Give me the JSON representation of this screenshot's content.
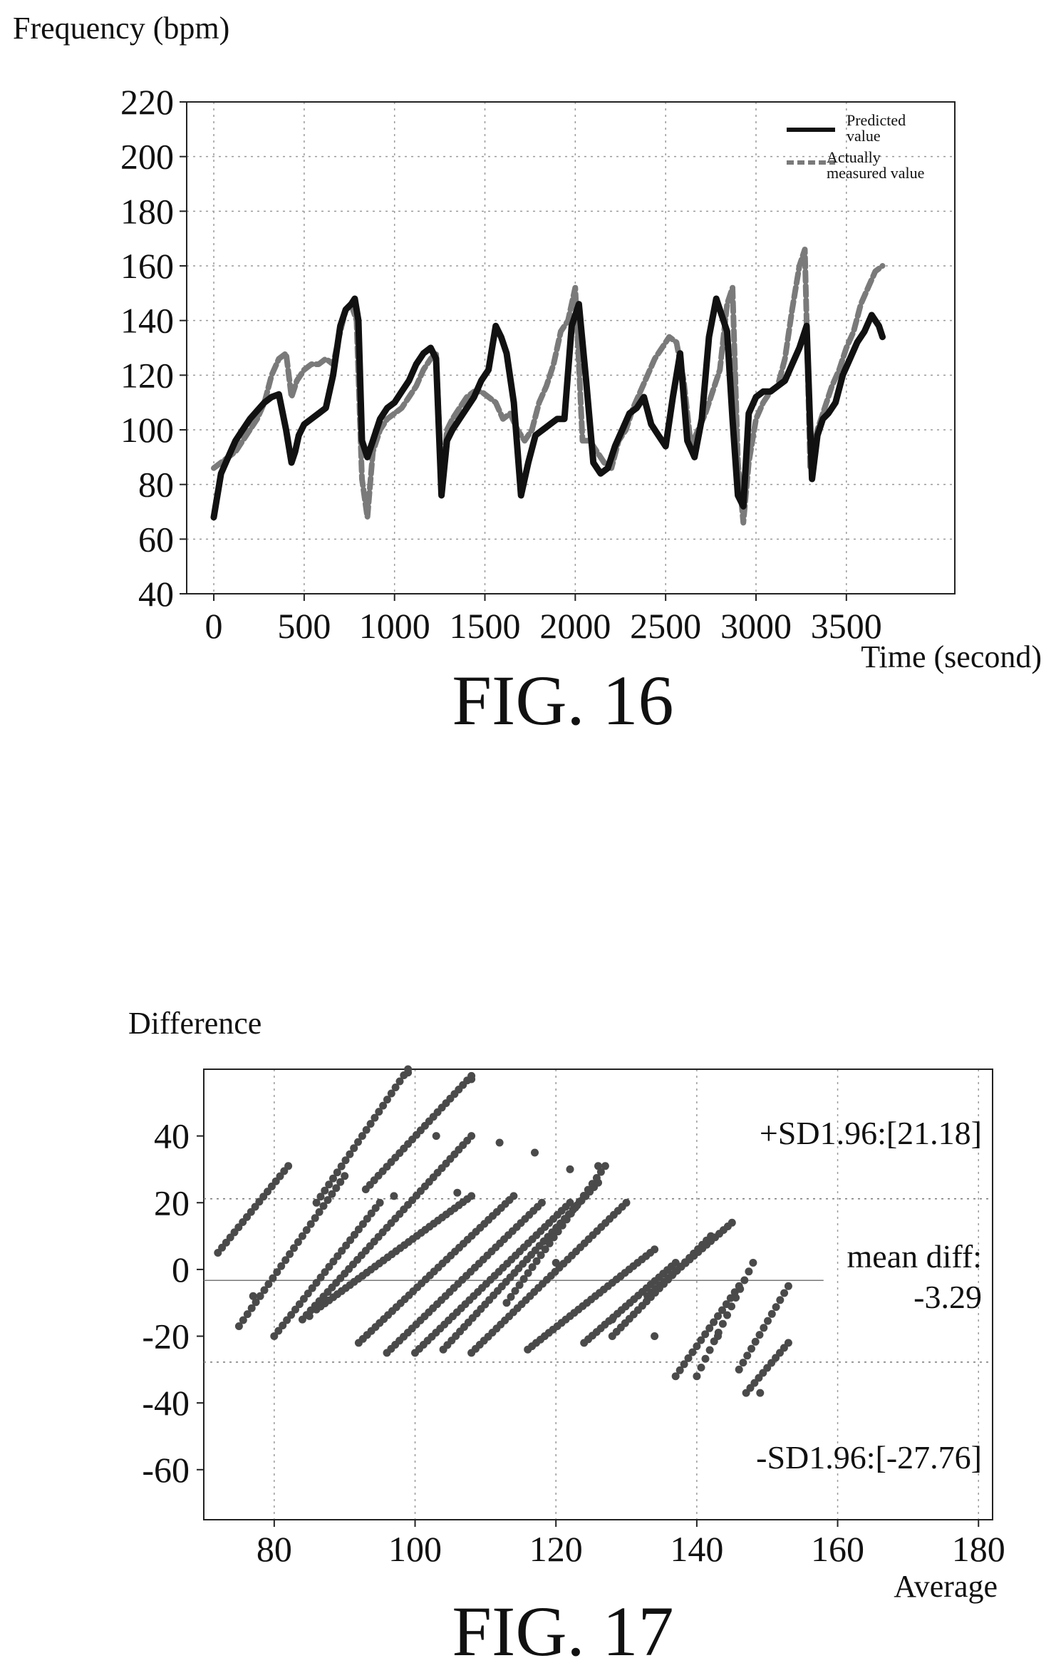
{
  "chart_data": [
    {
      "type": "line",
      "caption": "FIG. 16",
      "ylabel": "Frequency (bpm)",
      "xlabel": "Time (second)",
      "xlim": [
        -150,
        4100
      ],
      "ylim": [
        40,
        220
      ],
      "xticks": [
        0,
        500,
        1000,
        1500,
        2000,
        2500,
        3000,
        3500
      ],
      "yticks": [
        40,
        60,
        80,
        100,
        120,
        140,
        160,
        180,
        200,
        220
      ],
      "grid": true,
      "legend_position": "top-right",
      "series": [
        {
          "name": "Predicted value",
          "style": "solid",
          "color": "#111111",
          "x": [
            0,
            40,
            80,
            120,
            160,
            200,
            240,
            280,
            320,
            360,
            400,
            430,
            450,
            470,
            500,
            540,
            580,
            620,
            660,
            700,
            730,
            760,
            780,
            800,
            820,
            850,
            880,
            920,
            960,
            1000,
            1040,
            1080,
            1120,
            1160,
            1200,
            1230,
            1260,
            1290,
            1320,
            1360,
            1400,
            1440,
            1480,
            1520,
            1560,
            1590,
            1620,
            1660,
            1700,
            1740,
            1780,
            1820,
            1860,
            1900,
            1940,
            1980,
            2020,
            2060,
            2100,
            2140,
            2180,
            2220,
            2260,
            2300,
            2340,
            2380,
            2420,
            2460,
            2500,
            2540,
            2580,
            2620,
            2660,
            2700,
            2740,
            2780,
            2810,
            2840,
            2870,
            2900,
            2930,
            2960,
            3000,
            3040,
            3080,
            3120,
            3160,
            3200,
            3240,
            3280,
            3310,
            3340,
            3370,
            3400,
            3440,
            3480,
            3520,
            3560,
            3600,
            3640,
            3680,
            3700
          ],
          "y": [
            68,
            84,
            90,
            96,
            100,
            104,
            107,
            110,
            112,
            113,
            100,
            88,
            92,
            98,
            102,
            104,
            106,
            108,
            120,
            138,
            144,
            146,
            148,
            140,
            96,
            90,
            96,
            104,
            108,
            110,
            114,
            118,
            124,
            128,
            130,
            126,
            76,
            96,
            100,
            104,
            108,
            112,
            118,
            122,
            138,
            134,
            128,
            110,
            76,
            88,
            98,
            100,
            102,
            104,
            104,
            138,
            146,
            118,
            88,
            84,
            86,
            94,
            100,
            106,
            108,
            112,
            102,
            98,
            94,
            112,
            128,
            96,
            90,
            104,
            134,
            148,
            142,
            136,
            104,
            76,
            72,
            106,
            112,
            114,
            114,
            116,
            118,
            124,
            130,
            138,
            82,
            98,
            104,
            106,
            110,
            120,
            126,
            132,
            136,
            142,
            138,
            134
          ]
        },
        {
          "name": "Actually measured value",
          "style": "dashed",
          "color": "#7a7a7a",
          "x": [
            0,
            40,
            80,
            120,
            160,
            200,
            240,
            280,
            320,
            360,
            400,
            430,
            460,
            500,
            540,
            580,
            620,
            660,
            700,
            730,
            760,
            790,
            820,
            850,
            880,
            920,
            960,
            1000,
            1040,
            1080,
            1120,
            1160,
            1200,
            1230,
            1260,
            1290,
            1320,
            1360,
            1400,
            1440,
            1480,
            1520,
            1560,
            1600,
            1640,
            1680,
            1720,
            1760,
            1800,
            1840,
            1880,
            1920,
            1960,
            2000,
            2040,
            2080,
            2120,
            2160,
            2200,
            2240,
            2280,
            2320,
            2360,
            2400,
            2440,
            2480,
            2520,
            2560,
            2600,
            2640,
            2680,
            2720,
            2760,
            2800,
            2840,
            2870,
            2900,
            2930,
            2960,
            3000,
            3040,
            3080,
            3120,
            3160,
            3200,
            3240,
            3270,
            3300,
            3340,
            3380,
            3420,
            3460,
            3500,
            3540,
            3580,
            3620,
            3660,
            3700
          ],
          "y": [
            86,
            88,
            90,
            92,
            96,
            100,
            104,
            110,
            120,
            126,
            128,
            112,
            118,
            122,
            124,
            124,
            126,
            124,
            136,
            144,
            146,
            140,
            82,
            68,
            92,
            100,
            104,
            106,
            108,
            112,
            116,
            122,
            126,
            128,
            80,
            100,
            104,
            108,
            112,
            114,
            114,
            112,
            110,
            104,
            106,
            100,
            96,
            100,
            110,
            116,
            124,
            136,
            140,
            152,
            96,
            96,
            92,
            88,
            86,
            96,
            100,
            108,
            114,
            120,
            126,
            130,
            134,
            132,
            118,
            94,
            100,
            106,
            114,
            122,
            146,
            152,
            88,
            66,
            88,
            104,
            110,
            114,
            116,
            126,
            144,
            160,
            166,
            86,
            100,
            108,
            116,
            122,
            130,
            136,
            146,
            152,
            158,
            160
          ]
        }
      ]
    },
    {
      "type": "scatter",
      "caption": "FIG. 17",
      "ylabel": "Difference",
      "xlabel": "Average",
      "xlim": [
        70,
        182
      ],
      "ylim": [
        -75,
        60
      ],
      "xticks": [
        80,
        100,
        120,
        140,
        160,
        180
      ],
      "yticks": [
        -60,
        -40,
        -20,
        0,
        20,
        40
      ],
      "grid": true,
      "reference_lines": [
        {
          "label": "+SD1.96:",
          "value_text": "[21.18]",
          "value": 21.18
        },
        {
          "label": "mean diff:",
          "value_text": "-3.29",
          "value": -3.29
        },
        {
          "label": "-SD1.96:",
          "value_text": "[-27.76]",
          "value": -27.76
        }
      ],
      "point_bands": [
        {
          "x_start": 72,
          "x_end": 82,
          "y_start": 5,
          "y_end": 31
        },
        {
          "x_start": 75,
          "x_end": 90,
          "y_start": -17,
          "y_end": 28
        },
        {
          "x_start": 80,
          "x_end": 95,
          "y_start": -20,
          "y_end": 20
        },
        {
          "x_start": 84,
          "x_end": 108,
          "y_start": -15,
          "y_end": 40
        },
        {
          "x_start": 86,
          "x_end": 99,
          "y_start": 20,
          "y_end": 60
        },
        {
          "x_start": 93,
          "x_end": 108,
          "y_start": 24,
          "y_end": 58
        },
        {
          "x_start": 86,
          "x_end": 108,
          "y_start": -12,
          "y_end": 22
        },
        {
          "x_start": 92,
          "x_end": 114,
          "y_start": -22,
          "y_end": 22
        },
        {
          "x_start": 96,
          "x_end": 118,
          "y_start": -25,
          "y_end": 20
        },
        {
          "x_start": 100,
          "x_end": 122,
          "y_start": -25,
          "y_end": 20
        },
        {
          "x_start": 104,
          "x_end": 126,
          "y_start": -24,
          "y_end": 26
        },
        {
          "x_start": 108,
          "x_end": 130,
          "y_start": -25,
          "y_end": 20
        },
        {
          "x_start": 113,
          "x_end": 127,
          "y_start": -10,
          "y_end": 31
        },
        {
          "x_start": 116,
          "x_end": 134,
          "y_start": -24,
          "y_end": 6
        },
        {
          "x_start": 124,
          "x_end": 137,
          "y_start": -22,
          "y_end": 2
        },
        {
          "x_start": 128,
          "x_end": 142,
          "y_start": -20,
          "y_end": 10
        },
        {
          "x_start": 133,
          "x_end": 145,
          "y_start": -8,
          "y_end": 14
        },
        {
          "x_start": 137,
          "x_end": 146,
          "y_start": -32,
          "y_end": -5
        },
        {
          "x_start": 140,
          "x_end": 148,
          "y_start": -32,
          "y_end": 2
        },
        {
          "x_start": 146,
          "x_end": 153,
          "y_start": -30,
          "y_end": -5
        },
        {
          "x_start": 147,
          "x_end": 153,
          "y_start": -37,
          "y_end": -22
        }
      ],
      "scattered_points": [
        [
          99,
          59
        ],
        [
          108,
          57
        ],
        [
          117,
          35
        ],
        [
          122,
          30
        ],
        [
          126,
          31
        ],
        [
          112,
          38
        ],
        [
          103,
          40
        ],
        [
          97,
          22
        ],
        [
          106,
          23
        ],
        [
          85,
          -14
        ],
        [
          77,
          -8
        ],
        [
          120,
          2
        ],
        [
          128,
          -15
        ],
        [
          134,
          -20
        ],
        [
          149,
          -37
        ],
        [
          143,
          -20
        ]
      ]
    }
  ]
}
